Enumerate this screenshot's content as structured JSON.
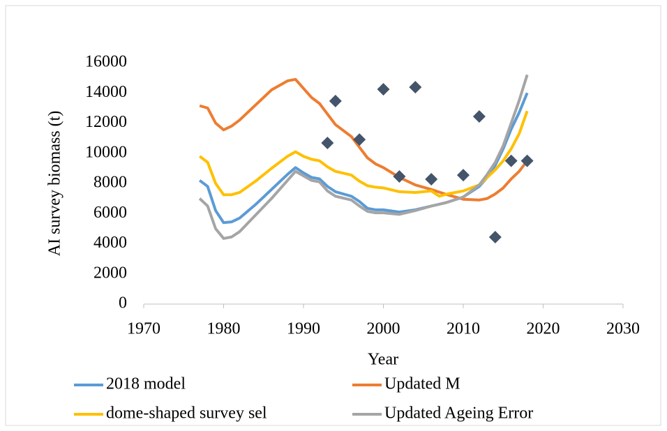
{
  "chart_data": {
    "type": "line",
    "x_label": "Year",
    "y_label": "AI survey biomass (t)",
    "xlim": [
      1970,
      2030
    ],
    "xticks": [
      1970,
      1980,
      1990,
      2000,
      2010,
      2020,
      2030
    ],
    "ylim": [
      0,
      16000
    ],
    "yticks": [
      0,
      2000,
      4000,
      6000,
      8000,
      10000,
      12000,
      14000,
      16000
    ],
    "series": [
      {
        "name": "2018 model",
        "color": "#5b9bd5",
        "type": "line",
        "x": [
          1977,
          1978,
          1979,
          1980,
          1981,
          1982,
          1984,
          1986,
          1988,
          1989,
          1990,
          1991,
          1992,
          1993,
          1994,
          1996,
          1997,
          1998,
          1999,
          2000,
          2002,
          2004,
          2006,
          2007,
          2008,
          2010,
          2012,
          2013,
          2014,
          2015,
          2016,
          2017,
          2018
        ],
        "values": [
          8200,
          7800,
          6200,
          5400,
          5450,
          5700,
          6600,
          7600,
          8600,
          9050,
          8700,
          8400,
          8300,
          7800,
          7450,
          7150,
          6800,
          6350,
          6250,
          6250,
          6100,
          6250,
          6500,
          6620,
          6750,
          7100,
          7800,
          8400,
          9200,
          10300,
          11600,
          12700,
          14000
        ]
      },
      {
        "name": "Updated M",
        "color": "#ed7d31",
        "type": "line",
        "x": [
          1977,
          1978,
          1979,
          1980,
          1981,
          1982,
          1984,
          1986,
          1988,
          1989,
          1990,
          1991,
          1992,
          1993,
          1994,
          1996,
          1997,
          1998,
          1999,
          2000,
          2002,
          2004,
          2006,
          2007,
          2008,
          2010,
          2012,
          2013,
          2014,
          2015,
          2016,
          2017,
          2018
        ],
        "values": [
          13150,
          13000,
          12000,
          11550,
          11800,
          12200,
          13200,
          14200,
          14800,
          14900,
          14300,
          13700,
          13300,
          12600,
          11900,
          11100,
          10400,
          9700,
          9300,
          9050,
          8400,
          7900,
          7600,
          7420,
          7250,
          6950,
          6900,
          7000,
          7300,
          7700,
          8300,
          8800,
          9500
        ]
      },
      {
        "name": "dome-shaped survey sel",
        "color": "#ffc000",
        "type": "line",
        "x": [
          1977,
          1978,
          1979,
          1980,
          1981,
          1982,
          1984,
          1986,
          1988,
          1989,
          1990,
          1991,
          1992,
          1993,
          1994,
          1996,
          1997,
          1998,
          1999,
          2000,
          2002,
          2004,
          2006,
          2007,
          2008,
          2010,
          2012,
          2013,
          2014,
          2015,
          2016,
          2017,
          2018
        ],
        "values": [
          9800,
          9400,
          8000,
          7250,
          7250,
          7400,
          8150,
          9000,
          9800,
          10100,
          9800,
          9600,
          9500,
          9100,
          8800,
          8550,
          8150,
          7850,
          7750,
          7700,
          7450,
          7400,
          7500,
          7150,
          7300,
          7500,
          7900,
          8400,
          8900,
          9500,
          10300,
          11300,
          12800
        ]
      },
      {
        "name": "Updated Ageing Error",
        "color": "#a5a5a5",
        "type": "line",
        "x": [
          1977,
          1978,
          1979,
          1980,
          1981,
          1982,
          1984,
          1986,
          1988,
          1989,
          1990,
          1991,
          1992,
          1993,
          1994,
          1996,
          1997,
          1998,
          1999,
          2000,
          2002,
          2004,
          2006,
          2007,
          2008,
          2010,
          2012,
          2013,
          2014,
          2015,
          2016,
          2017,
          2018
        ],
        "values": [
          7000,
          6500,
          5000,
          4350,
          4450,
          4800,
          5900,
          7000,
          8200,
          8800,
          8500,
          8200,
          8100,
          7500,
          7150,
          6900,
          6500,
          6150,
          6050,
          6050,
          5950,
          6200,
          6500,
          6620,
          6750,
          7100,
          7900,
          8600,
          9400,
          10500,
          12000,
          13500,
          15200
        ]
      },
      {
        "color": "#44546a",
        "type": "scatter",
        "x": [
          1993,
          1994,
          1997,
          2000,
          2002,
          2004,
          2006,
          2010,
          2012,
          2014,
          2016,
          2018
        ],
        "values": [
          10680,
          13460,
          10910,
          14240,
          8460,
          14380,
          8280,
          8550,
          12440,
          4440,
          9500,
          9500
        ]
      }
    ]
  }
}
